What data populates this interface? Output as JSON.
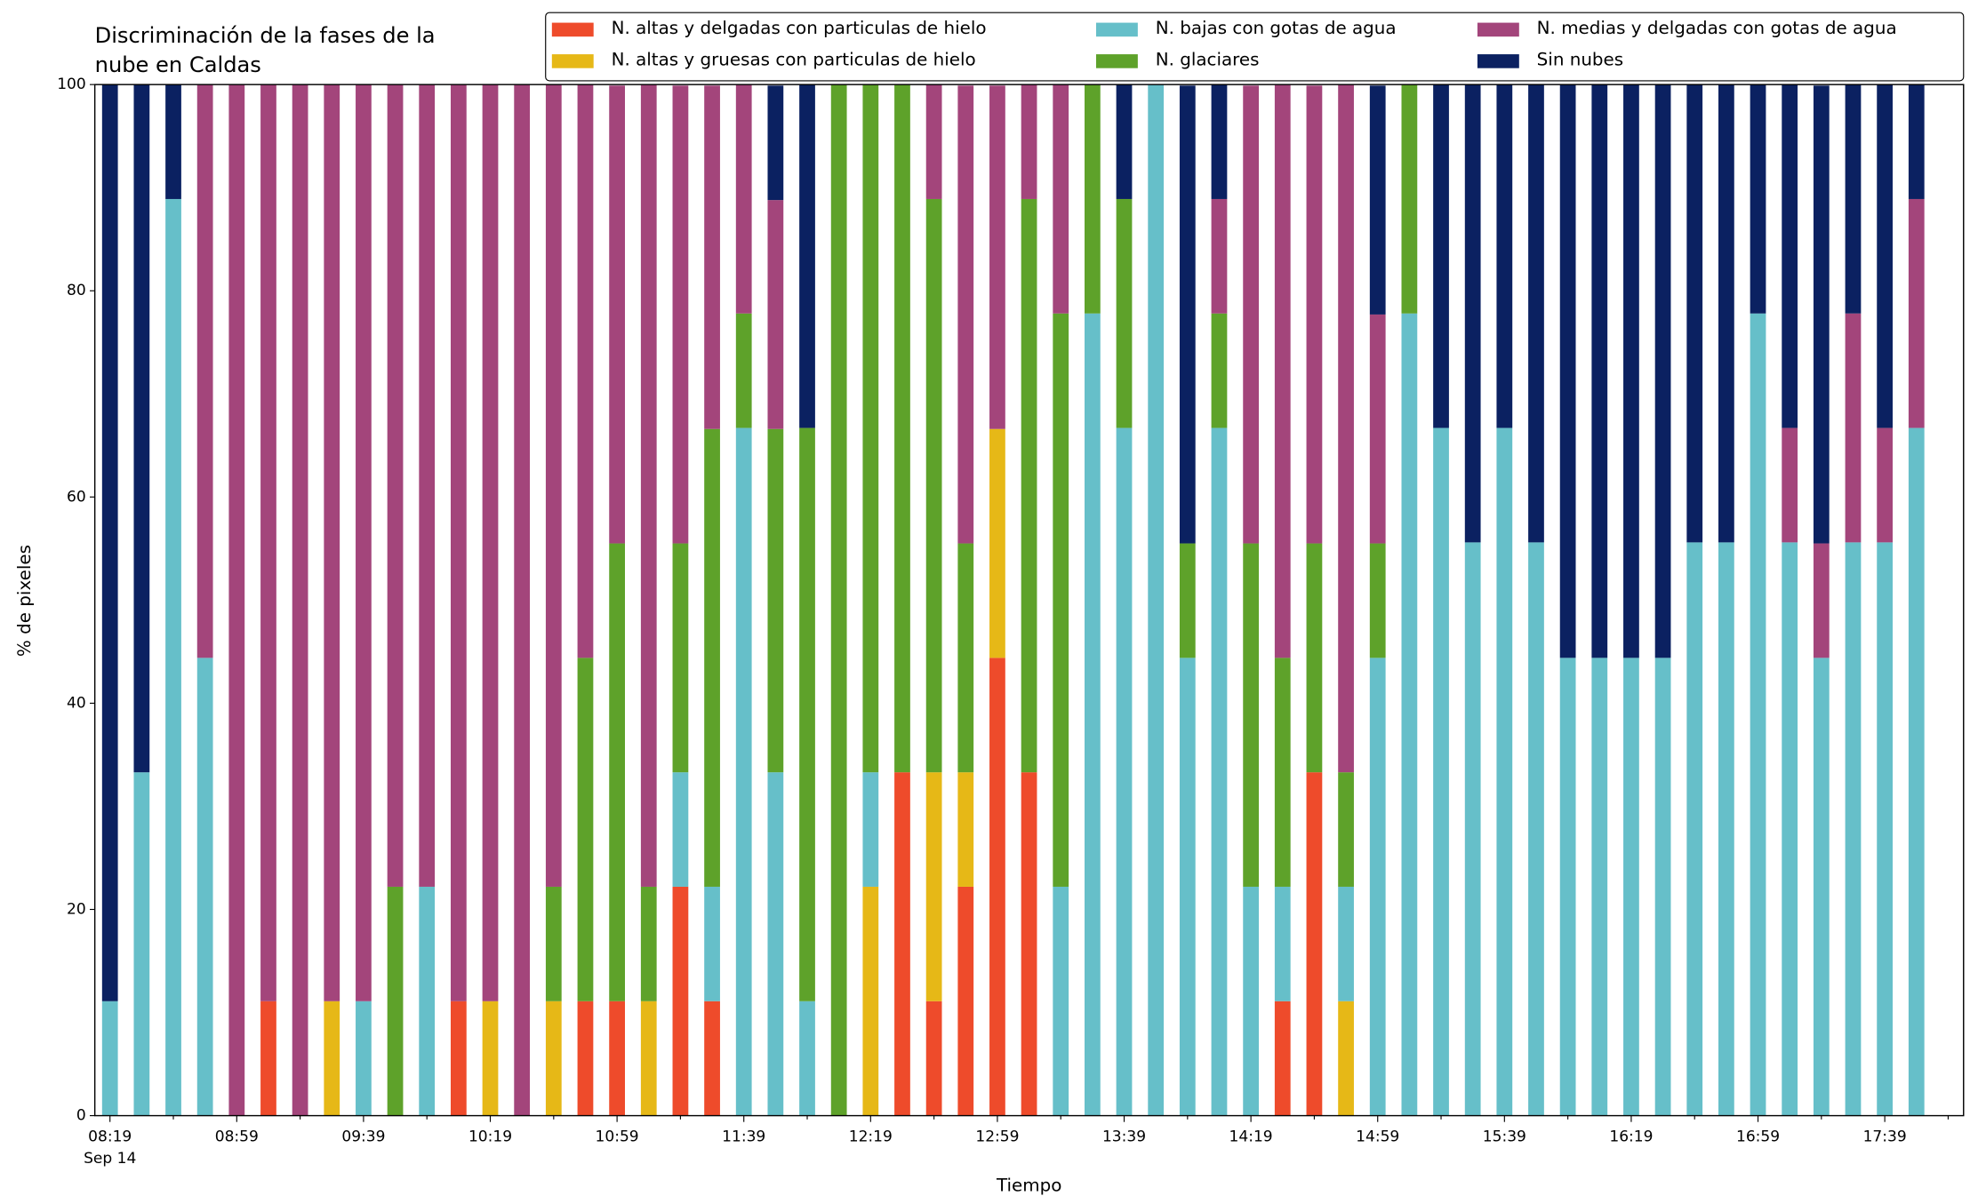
{
  "chart_data": {
    "type": "stacked_bar",
    "title": [
      "Discriminación de la fases de la",
      "nube en Caldas"
    ],
    "x_label": "Tiempo",
    "y_label": "% de pixeles",
    "x_date_label": "Sep 14",
    "categories": [
      "08:19",
      null,
      null,
      null,
      "08:59",
      null,
      null,
      null,
      "09:39",
      null,
      null,
      null,
      "10:19",
      null,
      null,
      null,
      "10:59",
      null,
      null,
      null,
      "11:39",
      null,
      null,
      null,
      "12:19",
      null,
      null,
      null,
      "12:59",
      null,
      null,
      null,
      "13:39",
      null,
      null,
      null,
      "14:19",
      null,
      null,
      null,
      "14:59",
      null,
      null,
      null,
      "15:39",
      null,
      null,
      null,
      "16:19",
      null,
      null,
      null,
      "16:59",
      null,
      null,
      null,
      "17:39",
      null
    ],
    "ylim": [
      0,
      100
    ],
    "yticks": [
      0,
      20,
      40,
      60,
      80,
      100
    ],
    "series": [
      {
        "name": "N. altas y delgadas con particulas de hielo",
        "color": "#ee4b2b",
        "values": [
          0,
          0,
          0,
          0,
          0,
          11.1,
          0,
          0,
          0,
          0,
          0,
          11.1,
          0,
          0,
          0,
          11.1,
          11.1,
          0,
          22.2,
          11.1,
          0,
          0,
          0,
          0,
          0,
          33.3,
          11.1,
          22.2,
          44.4,
          33.3,
          0,
          0,
          0,
          0,
          0,
          0,
          0,
          11.1,
          33.3,
          0,
          0,
          0,
          0,
          0,
          0,
          0,
          0,
          0,
          0,
          0,
          0,
          0,
          0,
          0,
          0,
          0,
          0,
          0
        ]
      },
      {
        "name": "N. altas y gruesas con particulas de hielo",
        "color": "#e6b817",
        "values": [
          0,
          0,
          0,
          0,
          0,
          0,
          0,
          11.1,
          0,
          0,
          0,
          0,
          11.1,
          0,
          11.1,
          0,
          0,
          11.1,
          0,
          0,
          0,
          0,
          0,
          0,
          22.2,
          0,
          22.2,
          11.1,
          22.2,
          0,
          0,
          0,
          0,
          0,
          0,
          0,
          0,
          0,
          0,
          11.1,
          0,
          0,
          0,
          0,
          0,
          0,
          0,
          0,
          0,
          0,
          0,
          0,
          0,
          0,
          0,
          0,
          0,
          0
        ]
      },
      {
        "name": "N. bajas con gotas de agua",
        "color": "#66bfc9",
        "values": [
          11.1,
          33.3,
          88.9,
          44.4,
          0,
          0,
          0,
          0,
          11.1,
          0,
          22.2,
          0,
          0,
          0,
          0,
          0,
          0,
          0,
          11.1,
          11.1,
          66.7,
          33.3,
          11.1,
          0,
          11.1,
          0,
          0,
          0,
          0,
          0,
          22.2,
          77.8,
          66.7,
          100,
          44.4,
          66.7,
          22.2,
          11.1,
          0,
          11.1,
          44.4,
          77.8,
          66.7,
          55.6,
          66.7,
          55.6,
          44.4,
          44.4,
          44.4,
          44.4,
          55.6,
          55.6,
          77.8,
          55.6,
          44.4,
          55.6,
          55.6,
          66.7
        ]
      },
      {
        "name": "N. glaciares",
        "color": "#5ea22a",
        "values": [
          0,
          0,
          0,
          0,
          0,
          0,
          0,
          0,
          0,
          22.2,
          0,
          0,
          0,
          0,
          11.1,
          33.3,
          44.4,
          11.1,
          22.2,
          44.4,
          11.1,
          33.3,
          55.6,
          100,
          66.7,
          66.7,
          55.6,
          22.2,
          0,
          55.6,
          55.6,
          22.2,
          22.2,
          0,
          11.1,
          11.1,
          33.3,
          22.2,
          22.2,
          11.1,
          11.1,
          22.2,
          0,
          0,
          0,
          0,
          0,
          0,
          0,
          0,
          0,
          0,
          0,
          0,
          0,
          0,
          0,
          0
        ]
      },
      {
        "name": "N. medias y delgadas con gotas de agua",
        "color": "#a3457b",
        "values": [
          0,
          0,
          0,
          55.6,
          100,
          88.9,
          100,
          88.9,
          88.9,
          77.8,
          77.8,
          88.9,
          88.9,
          100,
          77.8,
          55.6,
          44.4,
          77.8,
          44.4,
          33.3,
          22.2,
          22.2,
          0,
          0,
          0,
          0,
          11.1,
          44.4,
          33.3,
          11.1,
          22.2,
          0,
          0,
          0,
          0,
          11.1,
          44.4,
          55.6,
          44.4,
          66.7,
          22.2,
          0,
          0,
          0,
          0,
          0,
          0,
          0,
          0,
          0,
          0,
          0,
          0,
          11.1,
          11.1,
          22.2,
          11.1,
          22.2
        ]
      },
      {
        "name": "Sin nubes",
        "color": "#0b2161",
        "values": [
          88.9,
          66.7,
          11.1,
          0,
          0,
          0,
          0,
          0,
          0,
          0,
          0,
          0,
          0,
          0,
          0,
          0,
          0,
          0,
          0,
          0,
          0,
          11.1,
          33.3,
          0,
          0,
          0,
          0,
          0,
          0,
          0,
          0,
          0,
          11.1,
          0,
          44.4,
          11.1,
          0,
          0,
          0,
          0,
          22.2,
          0,
          33.3,
          44.4,
          33.3,
          44.4,
          55.6,
          55.6,
          55.6,
          55.6,
          44.4,
          44.4,
          22.2,
          33.3,
          44.4,
          22.2,
          33.3,
          11.1
        ]
      }
    ]
  }
}
